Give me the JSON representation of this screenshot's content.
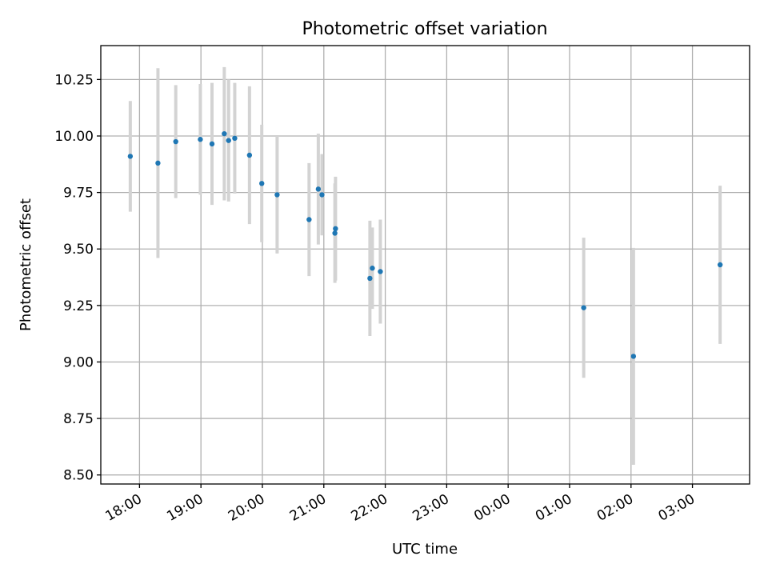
{
  "chart_data": {
    "type": "scatter",
    "title": "Photometric offset variation",
    "xlabel": "UTC time",
    "ylabel": "Photometric offset",
    "x_axis_type": "time",
    "x_ticks": [
      "18:00",
      "19:00",
      "20:00",
      "21:00",
      "22:00",
      "23:00",
      "00:00",
      "01:00",
      "02:00",
      "03:00"
    ],
    "x_tick_hours": [
      0,
      1,
      2,
      3,
      4,
      5,
      6,
      7,
      8,
      9
    ],
    "xlim_hours": [
      -0.63,
      9.93
    ],
    "y_ticks": [
      "8.50",
      "8.75",
      "9.00",
      "9.25",
      "9.50",
      "9.75",
      "10.00",
      "10.25"
    ],
    "y_tick_values": [
      8.5,
      8.75,
      9.0,
      9.25,
      9.5,
      9.75,
      10.0,
      10.25
    ],
    "ylim": [
      8.46,
      10.4
    ],
    "grid": true,
    "point_color": "#1f77b4",
    "errorbar_color": "#d3d3d3",
    "points": [
      {
        "t": "17:51",
        "h": -0.15,
        "y": 9.91,
        "err": 0.245
      },
      {
        "t": "18:18",
        "h": 0.3,
        "y": 9.88,
        "err": 0.42
      },
      {
        "t": "18:35",
        "h": 0.59,
        "y": 9.975,
        "err": 0.25
      },
      {
        "t": "18:59",
        "h": 0.99,
        "y": 9.985,
        "err": 0.245
      },
      {
        "t": "19:10",
        "h": 1.18,
        "y": 9.965,
        "err": 0.27
      },
      {
        "t": "19:23",
        "h": 1.38,
        "y": 10.01,
        "err": 0.295
      },
      {
        "t": "19:27",
        "h": 1.45,
        "y": 9.98,
        "err": 0.27
      },
      {
        "t": "19:33",
        "h": 1.55,
        "y": 9.99,
        "err": 0.245
      },
      {
        "t": "19:47",
        "h": 1.79,
        "y": 9.915,
        "err": 0.305
      },
      {
        "t": "19:59",
        "h": 1.99,
        "y": 9.79,
        "err": 0.26
      },
      {
        "t": "20:14",
        "h": 2.24,
        "y": 9.74,
        "err": 0.26
      },
      {
        "t": "20:46",
        "h": 2.76,
        "y": 9.63,
        "err": 0.25
      },
      {
        "t": "20:55",
        "h": 2.91,
        "y": 9.765,
        "err": 0.245
      },
      {
        "t": "20:58",
        "h": 2.97,
        "y": 9.74,
        "err": 0.18
      },
      {
        "t": "21:11",
        "h": 3.18,
        "y": 9.57,
        "err": 0.22
      },
      {
        "t": "21:11",
        "h": 3.19,
        "y": 9.59,
        "err": 0.23
      },
      {
        "t": "21:45",
        "h": 3.75,
        "y": 9.37,
        "err": 0.255
      },
      {
        "t": "21:47",
        "h": 3.79,
        "y": 9.415,
        "err": 0.18
      },
      {
        "t": "21:55",
        "h": 3.92,
        "y": 9.4,
        "err": 0.23
      },
      {
        "t": "01:14",
        "h": 7.23,
        "y": 9.24,
        "err": 0.31
      },
      {
        "t": "02:03",
        "h": 8.04,
        "y": 9.025,
        "err": 0.48
      },
      {
        "t": "03:27",
        "h": 9.45,
        "y": 9.43,
        "err": 0.35
      }
    ]
  }
}
